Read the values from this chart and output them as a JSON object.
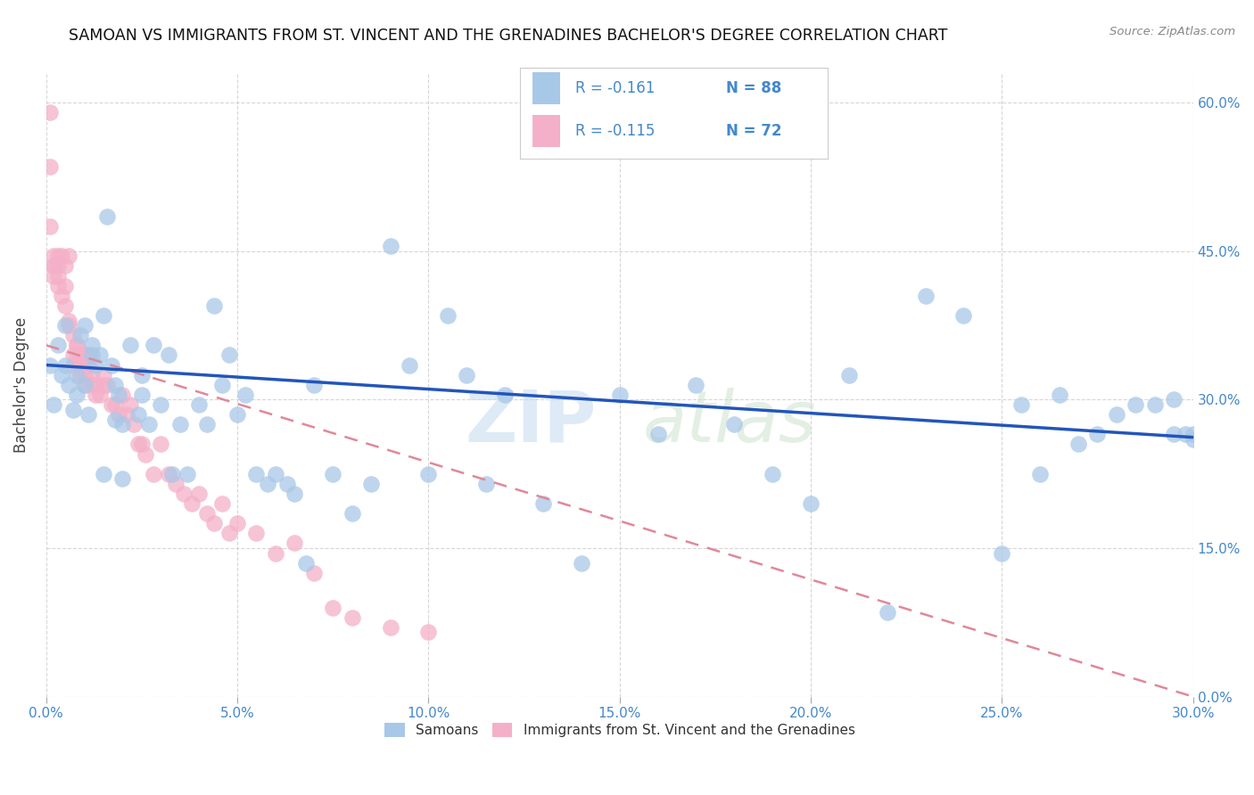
{
  "title": "SAMOAN VS IMMIGRANTS FROM ST. VINCENT AND THE GRENADINES BACHELOR'S DEGREE CORRELATION CHART",
  "source": "Source: ZipAtlas.com",
  "ylabel": "Bachelor's Degree",
  "xlim": [
    0.0,
    0.3
  ],
  "ylim": [
    0.0,
    0.63
  ],
  "blue_R": "-0.161",
  "blue_N": "88",
  "pink_R": "-0.115",
  "pink_N": "72",
  "blue_color": "#a8c8e8",
  "pink_color": "#f4b0c8",
  "blue_line_color": "#2255bb",
  "pink_line_color": "#e08898",
  "tick_color": "#4488cc",
  "watermark_color": "#d8e8f0",
  "legend_label_blue": "Samoans",
  "legend_label_pink": "Immigrants from St. Vincent and the Grenadines",
  "blue_scatter_x": [
    0.001,
    0.002,
    0.003,
    0.004,
    0.005,
    0.006,
    0.007,
    0.008,
    0.009,
    0.01,
    0.011,
    0.012,
    0.013,
    0.014,
    0.015,
    0.016,
    0.017,
    0.018,
    0.019,
    0.02,
    0.022,
    0.024,
    0.025,
    0.027,
    0.028,
    0.03,
    0.032,
    0.033,
    0.035,
    0.037,
    0.04,
    0.042,
    0.044,
    0.046,
    0.048,
    0.05,
    0.052,
    0.055,
    0.058,
    0.06,
    0.063,
    0.065,
    0.068,
    0.07,
    0.075,
    0.08,
    0.085,
    0.09,
    0.095,
    0.1,
    0.105,
    0.11,
    0.115,
    0.12,
    0.13,
    0.14,
    0.15,
    0.16,
    0.17,
    0.18,
    0.19,
    0.2,
    0.21,
    0.22,
    0.23,
    0.24,
    0.25,
    0.255,
    0.26,
    0.265,
    0.27,
    0.275,
    0.28,
    0.285,
    0.29,
    0.295,
    0.295,
    0.298,
    0.3,
    0.3,
    0.005,
    0.008,
    0.01,
    0.012,
    0.015,
    0.018,
    0.02,
    0.025
  ],
  "blue_scatter_y": [
    0.335,
    0.295,
    0.355,
    0.325,
    0.335,
    0.315,
    0.29,
    0.325,
    0.365,
    0.315,
    0.285,
    0.355,
    0.335,
    0.345,
    0.385,
    0.485,
    0.335,
    0.315,
    0.305,
    0.275,
    0.355,
    0.285,
    0.325,
    0.275,
    0.355,
    0.295,
    0.345,
    0.225,
    0.275,
    0.225,
    0.295,
    0.275,
    0.395,
    0.315,
    0.345,
    0.285,
    0.305,
    0.225,
    0.215,
    0.225,
    0.215,
    0.205,
    0.135,
    0.315,
    0.225,
    0.185,
    0.215,
    0.455,
    0.335,
    0.225,
    0.385,
    0.325,
    0.215,
    0.305,
    0.195,
    0.135,
    0.305,
    0.265,
    0.315,
    0.275,
    0.225,
    0.195,
    0.325,
    0.085,
    0.405,
    0.385,
    0.145,
    0.295,
    0.225,
    0.305,
    0.255,
    0.265,
    0.285,
    0.295,
    0.295,
    0.265,
    0.3,
    0.265,
    0.26,
    0.265,
    0.375,
    0.305,
    0.375,
    0.345,
    0.225,
    0.28,
    0.22,
    0.305
  ],
  "pink_scatter_x": [
    0.001,
    0.001,
    0.001,
    0.002,
    0.002,
    0.002,
    0.002,
    0.003,
    0.003,
    0.003,
    0.003,
    0.004,
    0.004,
    0.005,
    0.005,
    0.005,
    0.006,
    0.006,
    0.006,
    0.007,
    0.007,
    0.007,
    0.008,
    0.008,
    0.008,
    0.009,
    0.009,
    0.009,
    0.01,
    0.01,
    0.01,
    0.01,
    0.011,
    0.011,
    0.012,
    0.012,
    0.013,
    0.013,
    0.014,
    0.015,
    0.015,
    0.016,
    0.017,
    0.018,
    0.019,
    0.02,
    0.021,
    0.022,
    0.023,
    0.024,
    0.025,
    0.026,
    0.028,
    0.03,
    0.032,
    0.034,
    0.036,
    0.038,
    0.04,
    0.042,
    0.044,
    0.046,
    0.048,
    0.05,
    0.055,
    0.06,
    0.065,
    0.07,
    0.075,
    0.08,
    0.09,
    0.1
  ],
  "pink_scatter_y": [
    0.59,
    0.535,
    0.475,
    0.445,
    0.435,
    0.435,
    0.425,
    0.445,
    0.435,
    0.425,
    0.415,
    0.445,
    0.405,
    0.435,
    0.415,
    0.395,
    0.445,
    0.38,
    0.375,
    0.365,
    0.345,
    0.335,
    0.355,
    0.355,
    0.345,
    0.345,
    0.335,
    0.325,
    0.335,
    0.345,
    0.325,
    0.315,
    0.345,
    0.335,
    0.325,
    0.315,
    0.315,
    0.305,
    0.305,
    0.325,
    0.315,
    0.315,
    0.295,
    0.295,
    0.285,
    0.305,
    0.285,
    0.295,
    0.275,
    0.255,
    0.255,
    0.245,
    0.225,
    0.255,
    0.225,
    0.215,
    0.205,
    0.195,
    0.205,
    0.185,
    0.175,
    0.195,
    0.165,
    0.175,
    0.165,
    0.145,
    0.155,
    0.125,
    0.09,
    0.08,
    0.07,
    0.065
  ]
}
